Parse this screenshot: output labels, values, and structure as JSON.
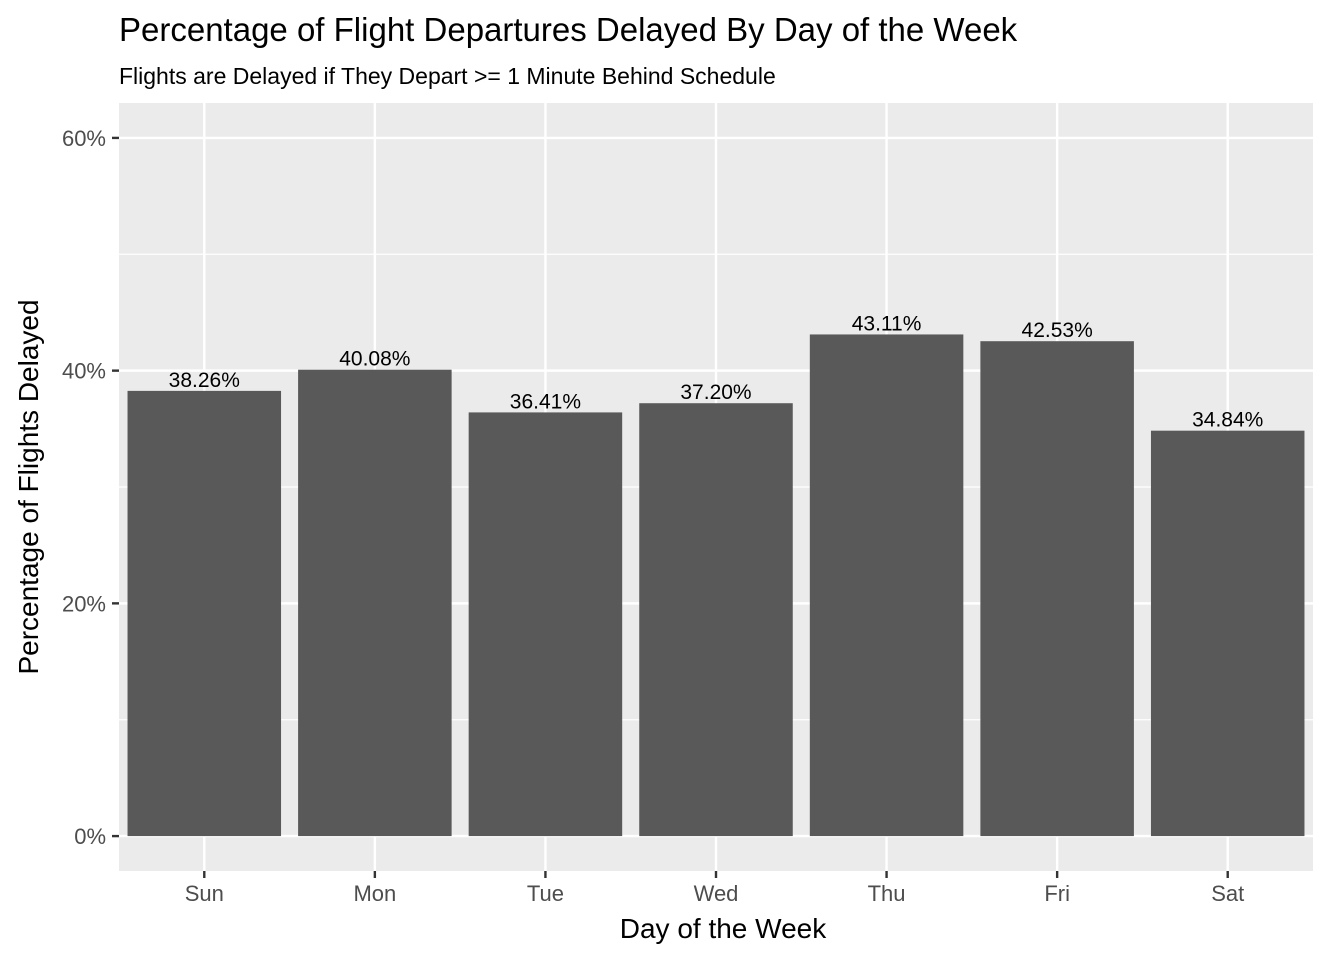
{
  "chart_data": {
    "type": "bar",
    "title": "Percentage of Flight Departures Delayed By Day of the Week",
    "subtitle": "Flights are Delayed if They Depart >= 1 Minute Behind Schedule",
    "xlabel": "Day of the Week",
    "ylabel": "Percentage of Flights Delayed",
    "categories": [
      "Sun",
      "Mon",
      "Tue",
      "Wed",
      "Thu",
      "Fri",
      "Sat"
    ],
    "values": [
      38.26,
      40.08,
      36.41,
      37.2,
      43.11,
      42.53,
      34.84
    ],
    "value_labels": [
      "38.26%",
      "40.08%",
      "36.41%",
      "37.20%",
      "43.11%",
      "42.53%",
      "34.84%"
    ],
    "ylim": [
      -3,
      63
    ],
    "y_ticks": [
      0,
      20,
      40,
      60
    ],
    "y_tick_labels": [
      "0%",
      "20%",
      "40%",
      "60%"
    ],
    "y_minor_ticks": [
      10,
      30,
      50
    ],
    "grid": true,
    "legend": "none",
    "colors": {
      "bar": "#595959",
      "panel_background": "#ebebeb",
      "grid": "#ffffff"
    }
  }
}
